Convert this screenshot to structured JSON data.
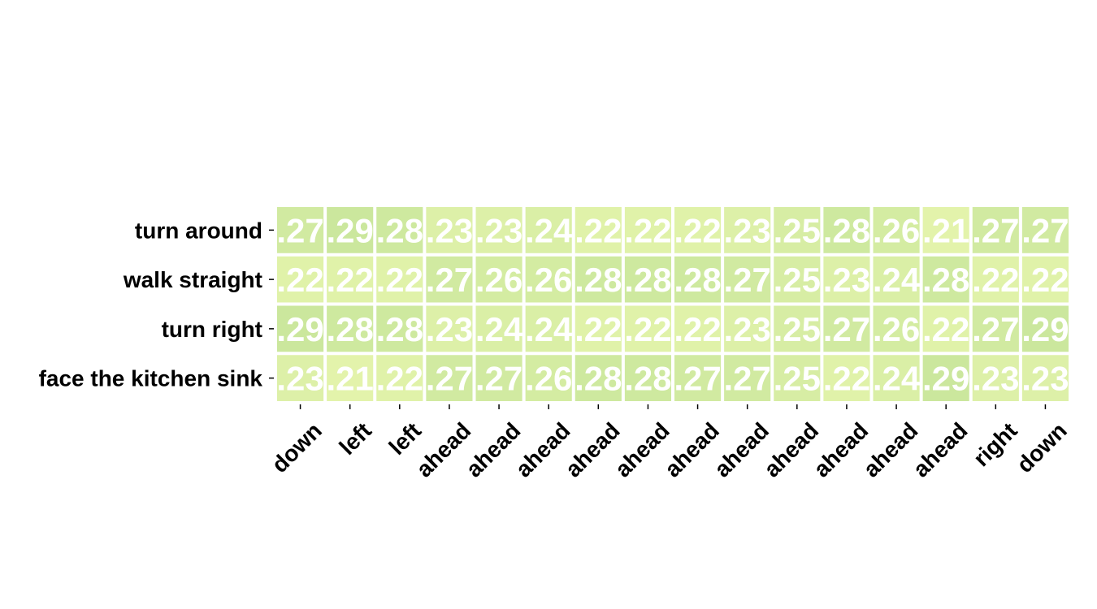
{
  "chart_data": {
    "type": "heatmap",
    "title": "",
    "xlabel": "",
    "ylabel": "",
    "rows": [
      "turn around",
      "walk straight",
      "turn right",
      "face the kitchen sink"
    ],
    "columns": [
      "down",
      "left",
      "left",
      "ahead",
      "ahead",
      "ahead",
      "ahead",
      "ahead",
      "ahead",
      "ahead",
      "ahead",
      "ahead",
      "ahead",
      "ahead",
      "right",
      "down"
    ],
    "values": [
      [
        0.27,
        0.29,
        0.28,
        0.23,
        0.23,
        0.24,
        0.22,
        0.22,
        0.22,
        0.23,
        0.25,
        0.28,
        0.26,
        0.21,
        0.27,
        0.27
      ],
      [
        0.22,
        0.22,
        0.22,
        0.27,
        0.26,
        0.26,
        0.28,
        0.28,
        0.28,
        0.27,
        0.25,
        0.23,
        0.24,
        0.28,
        0.22,
        0.22
      ],
      [
        0.29,
        0.28,
        0.28,
        0.23,
        0.24,
        0.24,
        0.22,
        0.22,
        0.22,
        0.23,
        0.25,
        0.27,
        0.26,
        0.22,
        0.27,
        0.29
      ],
      [
        0.23,
        0.21,
        0.22,
        0.27,
        0.27,
        0.26,
        0.28,
        0.28,
        0.27,
        0.27,
        0.25,
        0.22,
        0.24,
        0.29,
        0.23,
        0.23
      ]
    ],
    "cell_labels": [
      [
        ".27",
        ".29",
        ".28",
        ".23",
        ".23",
        ".24",
        ".22",
        ".22",
        ".22",
        ".23",
        ".25",
        ".28",
        ".26",
        ".21",
        ".27",
        ".27"
      ],
      [
        ".22",
        ".22",
        ".22",
        ".27",
        ".26",
        ".26",
        ".28",
        ".28",
        ".28",
        ".27",
        ".25",
        ".23",
        ".24",
        ".28",
        ".22",
        ".22"
      ],
      [
        ".29",
        ".28",
        ".28",
        ".23",
        ".24",
        ".24",
        ".22",
        ".22",
        ".22",
        ".23",
        ".25",
        ".27",
        ".26",
        ".22",
        ".27",
        ".29"
      ],
      [
        ".23",
        ".21",
        ".22",
        ".27",
        ".27",
        ".26",
        ".28",
        ".28",
        ".27",
        ".27",
        ".25",
        ".22",
        ".24",
        ".29",
        ".23",
        ".23"
      ]
    ],
    "color_scale": {
      "low": "#e3f3ab",
      "high": "#cbe79d"
    },
    "color_range": [
      0.21,
      0.29
    ],
    "grid": false,
    "legend": "none"
  }
}
